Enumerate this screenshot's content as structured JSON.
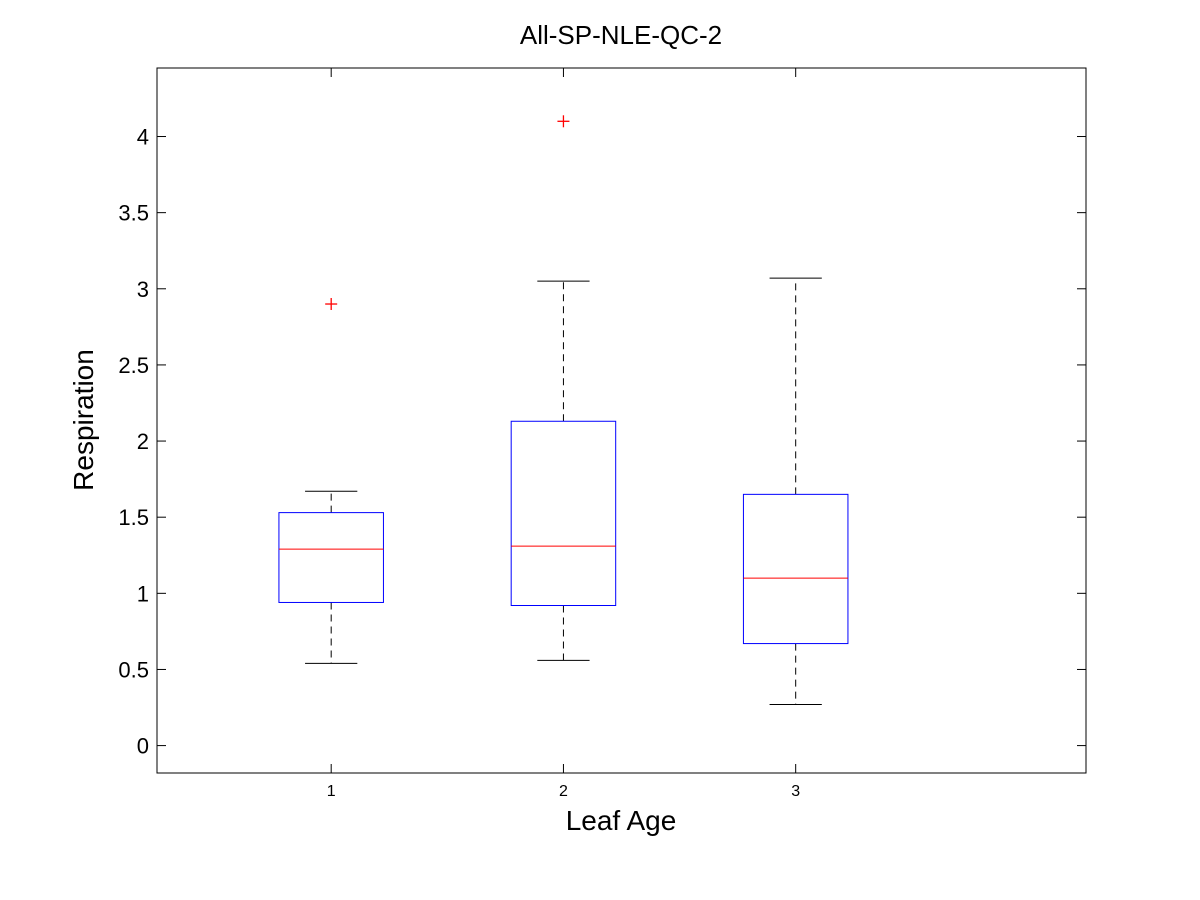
{
  "chart_data": {
    "type": "box",
    "title": "All-SP-NLE-QC-2",
    "xlabel": "Leaf Age",
    "ylabel": "Respiration",
    "ylim": [
      -0.18,
      4.45
    ],
    "xlim": [
      0.25,
      4.25
    ],
    "yticks": [
      0,
      0.5,
      1,
      1.5,
      2,
      2.5,
      3,
      3.5,
      4
    ],
    "ytick_labels": [
      "0",
      "0.5",
      "1",
      "1.5",
      "2",
      "2.5",
      "3",
      "3.5",
      "4"
    ],
    "categories": [
      "1",
      "2",
      "3"
    ],
    "boxes": [
      {
        "category": "1",
        "whisker_low": 0.54,
        "q1": 0.94,
        "median": 1.29,
        "q3": 1.53,
        "whisker_high": 1.67,
        "outliers": [
          2.9
        ]
      },
      {
        "category": "2",
        "whisker_low": 0.56,
        "q1": 0.92,
        "median": 1.31,
        "q3": 2.13,
        "whisker_high": 3.05,
        "outliers": [
          4.1
        ]
      },
      {
        "category": "3",
        "whisker_low": 0.27,
        "q1": 0.67,
        "median": 1.1,
        "q3": 1.65,
        "whisker_high": 3.07,
        "outliers": []
      }
    ],
    "colors": {
      "box": "#0000ff",
      "median": "#ff0000",
      "whisker": "#000000",
      "outlier": "#ff0000",
      "axes": "#000000"
    },
    "grid": false,
    "legend": "none"
  }
}
